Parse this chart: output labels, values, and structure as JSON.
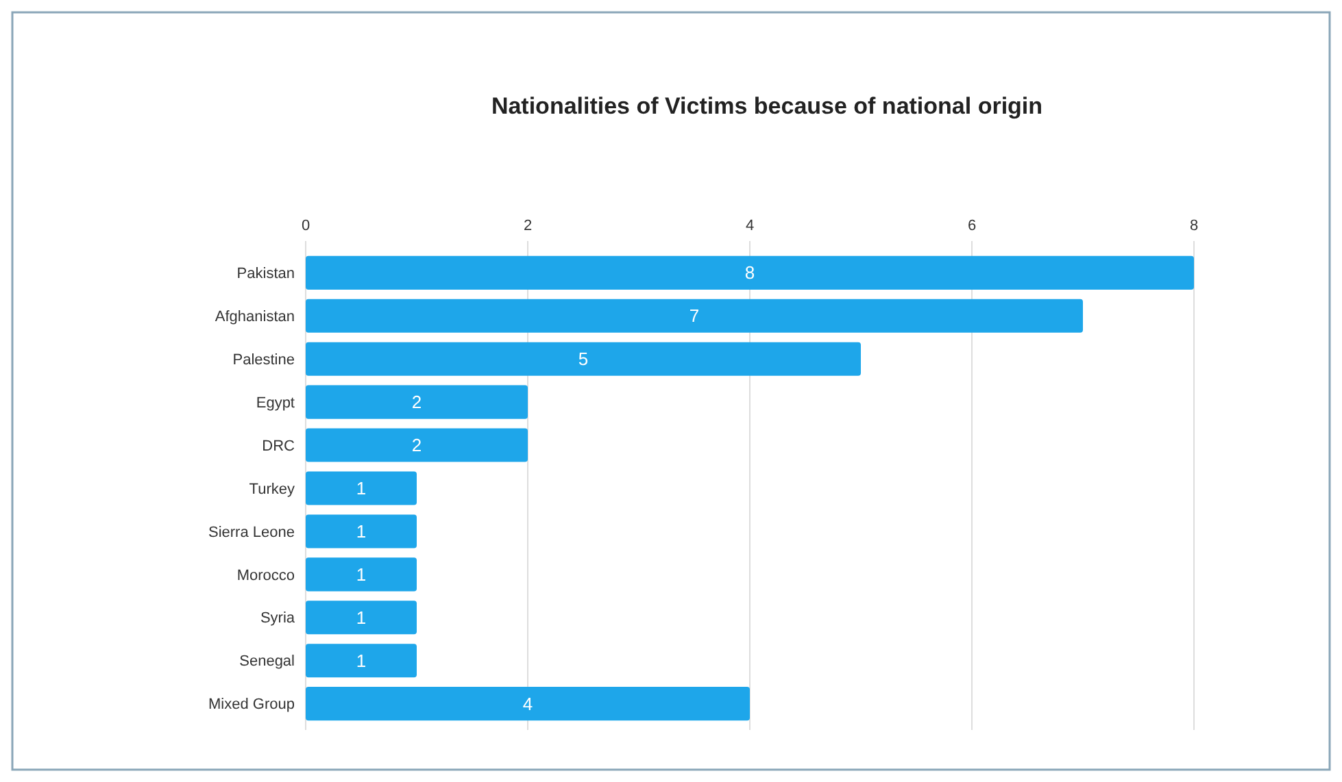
{
  "chart_data": {
    "type": "bar",
    "title": "Nationalities of Victims because of national origin",
    "orientation": "horizontal",
    "categories": [
      "Pakistan",
      "Afghanistan",
      "Palestine",
      "Egypt",
      "DRC",
      "Turkey",
      "Sierra Leone",
      "Morocco",
      "Syria",
      "Senegal",
      "Mixed Group"
    ],
    "values": [
      8,
      7,
      5,
      2,
      2,
      1,
      1,
      1,
      1,
      1,
      4
    ],
    "color": "#1ea6ea",
    "xlim": [
      0,
      8
    ],
    "xticks": [
      0,
      2,
      4,
      6,
      8
    ],
    "grid": "x",
    "data_labels": true
  }
}
